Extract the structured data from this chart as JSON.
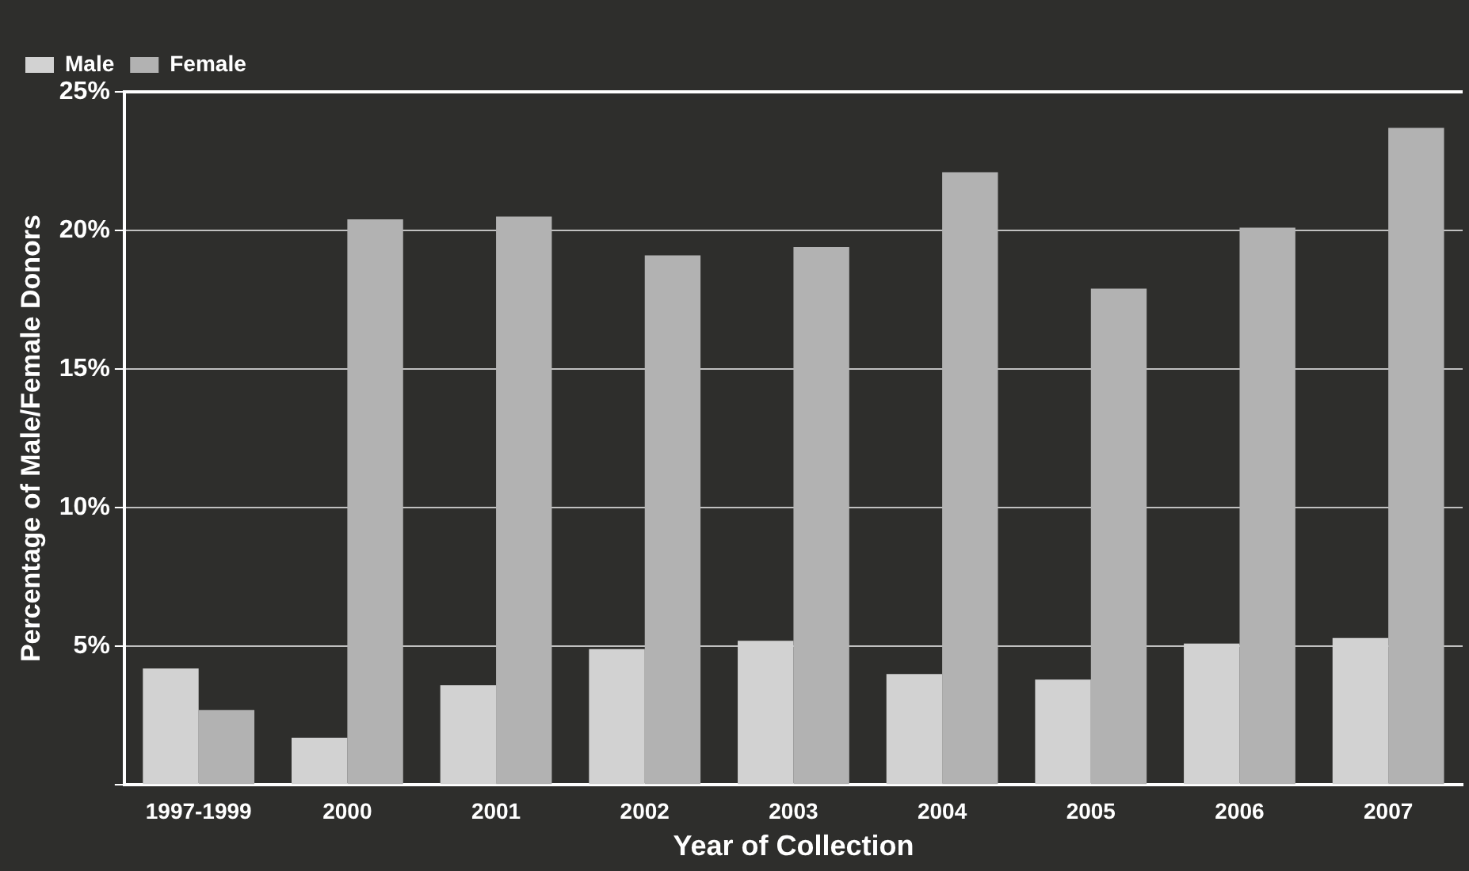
{
  "chart_data": {
    "type": "bar",
    "xlabel": "Year of Collection",
    "ylabel": "Percentage of Male/Female Donors",
    "categories": [
      "1997-1999",
      "2000",
      "2001",
      "2002",
      "2003",
      "2004",
      "2005",
      "2006",
      "2007"
    ],
    "series": [
      {
        "name": "Male",
        "color": "#d2d2d2",
        "values": [
          4.2,
          1.7,
          3.6,
          4.9,
          5.2,
          4.0,
          3.8,
          5.1,
          5.3
        ]
      },
      {
        "name": "Female",
        "color": "#b2b2b2",
        "values": [
          2.7,
          20.4,
          20.5,
          19.1,
          19.4,
          22.1,
          17.9,
          20.1,
          23.7
        ]
      }
    ],
    "ylim": [
      0,
      25
    ],
    "yticks": [
      {
        "value": 0,
        "label": null
      },
      {
        "value": 5,
        "label": "5%"
      },
      {
        "value": 10,
        "label": "10%"
      },
      {
        "value": 15,
        "label": "15%"
      },
      {
        "value": 20,
        "label": "20%"
      },
      {
        "value": 25,
        "label": "25%"
      }
    ],
    "grid": "y",
    "legend": "top left"
  }
}
